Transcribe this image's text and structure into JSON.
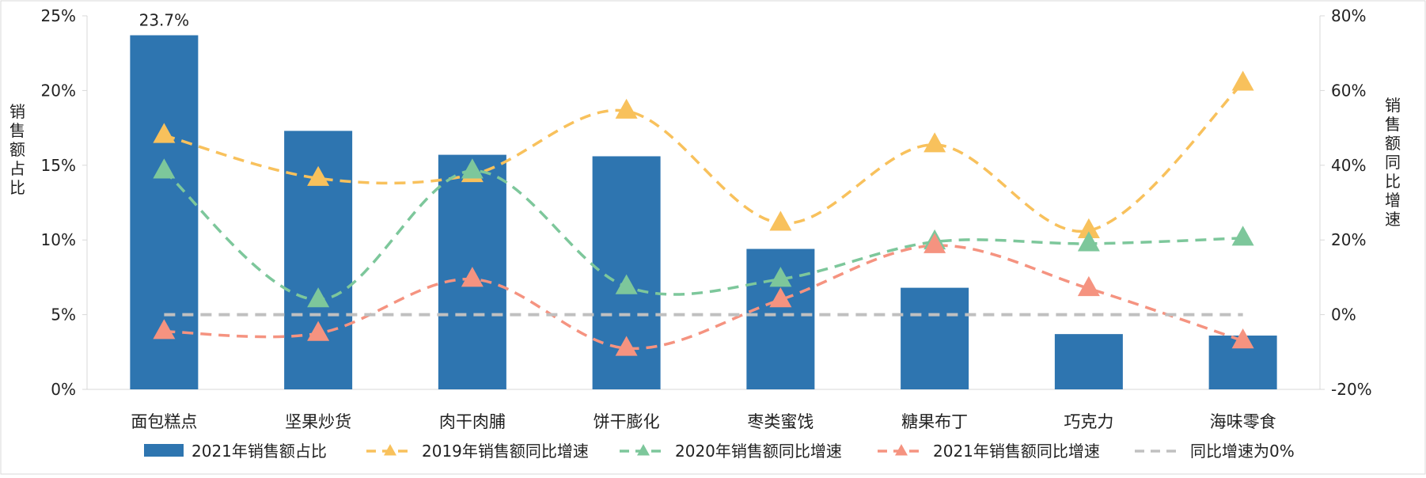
{
  "chart_data": {
    "type": "bar",
    "categories": [
      "面包糕点",
      "坚果炒货",
      "肉干肉脯",
      "饼干膨化",
      "枣类蜜饯",
      "糖果布丁",
      "巧克力",
      "海味零食"
    ],
    "left_axis": {
      "label": "销售额占比",
      "ylim": [
        0,
        25
      ],
      "ticks": [
        "0%",
        "5%",
        "10%",
        "15%",
        "20%",
        "25%"
      ]
    },
    "right_axis": {
      "label": "销售额同比增速",
      "ylim": [
        -20,
        80
      ],
      "ticks": [
        "-20%",
        "0%",
        "20%",
        "40%",
        "60%",
        "80%"
      ]
    },
    "bars": {
      "name": "2021年销售额占比",
      "color": "#2e75b0",
      "values": [
        23.7,
        17.3,
        15.7,
        15.6,
        9.4,
        6.8,
        3.7,
        3.6
      ],
      "data_label": "23.7%"
    },
    "series": [
      {
        "name": "2019年销售额同比增速",
        "color": "#f8c15c",
        "values": [
          48.0,
          36.5,
          37.5,
          54.5,
          24.5,
          45.5,
          22.5,
          62.0
        ]
      },
      {
        "name": "2020年销售额同比增速",
        "color": "#7dc79b",
        "values": [
          38.5,
          4.0,
          38.5,
          7.5,
          9.5,
          19.5,
          19.0,
          20.5
        ]
      },
      {
        "name": "2021年销售额同比增速",
        "color": "#f59380",
        "values": [
          -4.5,
          -5.0,
          9.5,
          -9.0,
          4.0,
          18.5,
          7.0,
          -7.0
        ]
      },
      {
        "name": "同比增速为0%",
        "color": "#c0c0c0",
        "values": [
          0,
          0,
          0,
          0,
          0,
          0,
          0,
          0
        ]
      }
    ],
    "grid": false,
    "legend_position": "bottom"
  }
}
